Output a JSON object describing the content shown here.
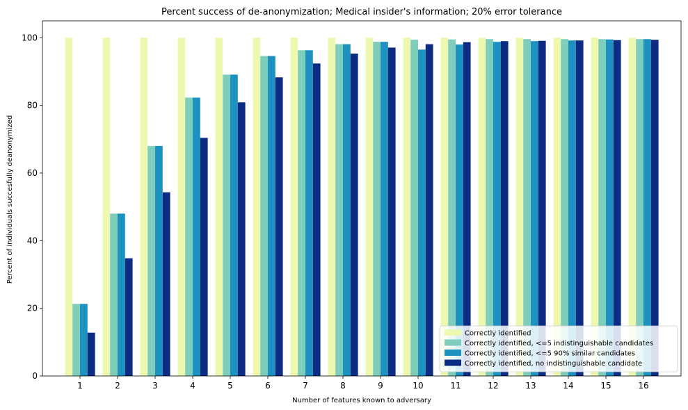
{
  "chart_data": {
    "type": "bar",
    "title": "Percent success of de-anonymization; Medical insider's information; 20% error tolerance",
    "xlabel": "Number of features known to adversary",
    "ylabel": "Percent of individuals succesfully deanonymized",
    "categories": [
      "1",
      "2",
      "3",
      "4",
      "5",
      "6",
      "7",
      "8",
      "9",
      "10",
      "11",
      "12",
      "13",
      "14",
      "15",
      "16"
    ],
    "ylim": [
      0,
      105
    ],
    "yticks": [
      0,
      20,
      40,
      60,
      80,
      100
    ],
    "grid": false,
    "legend_position": "lower-right",
    "series": [
      {
        "name": "Correctly identified",
        "color": "#edf8b1",
        "values": [
          100,
          100,
          100,
          100,
          100,
          100,
          100,
          100,
          100,
          100,
          100,
          100,
          100,
          100,
          100,
          100
        ]
      },
      {
        "name": "Correctly identified, <=5 indistinguishable candidates",
        "color": "#7fcdbb",
        "values": [
          21.3,
          48,
          68,
          82.3,
          89.1,
          94.6,
          96.3,
          98.1,
          98.8,
          99.4,
          99.5,
          99.6,
          99.6,
          99.6,
          99.6,
          99.6
        ]
      },
      {
        "name": "Correctly identified, <=5 90% similar candidates",
        "color": "#1d91c0",
        "values": [
          21.3,
          48,
          68,
          82.3,
          89.1,
          94.6,
          96.3,
          98.1,
          98.8,
          96.5,
          98.0,
          98.8,
          99.0,
          99.2,
          99.5,
          99.6
        ]
      },
      {
        "name": "Correctly identified, no indistinguishable candidate",
        "color": "#0c2c84",
        "values": [
          12.8,
          34.8,
          54.3,
          70.4,
          80.9,
          88.3,
          92.4,
          95.3,
          97.1,
          98.1,
          98.7,
          99.0,
          99.1,
          99.2,
          99.3,
          99.4
        ]
      }
    ]
  }
}
